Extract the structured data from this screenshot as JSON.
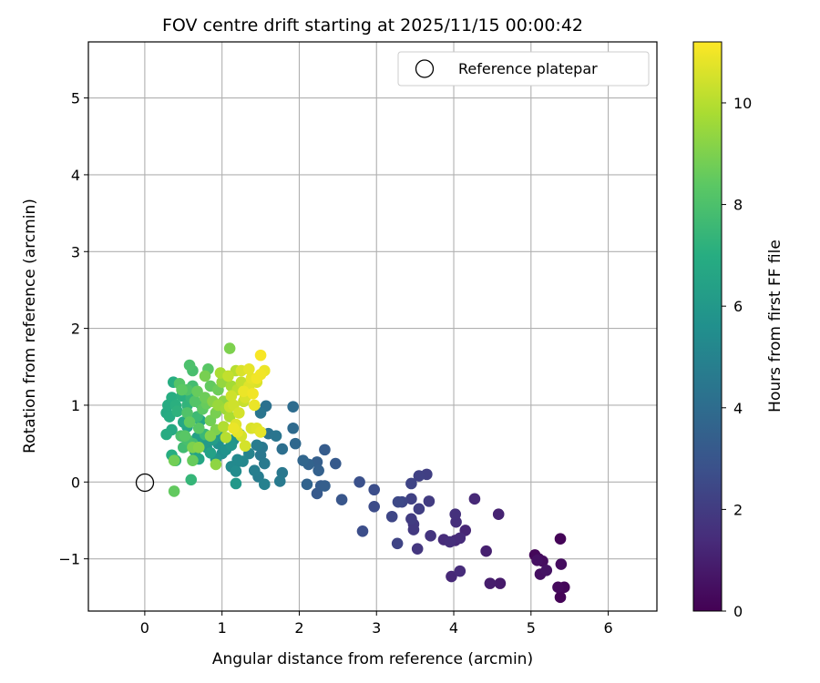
{
  "chart_data": {
    "type": "scatter",
    "title": "FOV centre drift starting at 2025/11/15 00:00:42",
    "xlabel": "Angular distance from reference (arcmin)",
    "ylabel": "Rotation from reference (arcmin)",
    "xlim": [
      -0.73,
      6.63
    ],
    "ylim": [
      -1.68,
      5.73
    ],
    "xticks": [
      "0",
      "1",
      "2",
      "3",
      "4",
      "5",
      "6"
    ],
    "yticks": [
      "−1",
      "0",
      "1",
      "2",
      "3",
      "4",
      "5"
    ],
    "grid": true,
    "legend": {
      "position": "top-right",
      "entries": [
        "Reference platepar"
      ]
    },
    "reference_point": {
      "x": 0,
      "y": 0,
      "marker": "open-circle"
    },
    "colorbar": {
      "label": "Hours from first FF file",
      "range": [
        0,
        11.2
      ],
      "ticks": [
        "0",
        "2",
        "4",
        "6",
        "8",
        "10"
      ],
      "colormap": "viridis"
    },
    "series": [
      {
        "points": [
          [
            5.38,
            -0.74,
            0.1
          ],
          [
            5.05,
            -0.95,
            0.2
          ],
          [
            5.1,
            -1.0,
            0.3
          ],
          [
            5.15,
            -1.03,
            0.4
          ],
          [
            5.08,
            -1.02,
            0.5
          ],
          [
            5.2,
            -1.15,
            0.6
          ],
          [
            5.12,
            -1.2,
            0.5
          ],
          [
            5.39,
            -1.07,
            0.4
          ],
          [
            5.35,
            -1.37,
            0.3
          ],
          [
            5.43,
            -1.37,
            0.2
          ],
          [
            5.38,
            -1.5,
            0.1
          ],
          [
            4.6,
            -1.32,
            0.8
          ],
          [
            4.47,
            -1.32,
            0.9
          ],
          [
            4.42,
            -0.9,
            1.0
          ],
          [
            4.58,
            -0.42,
            1.1
          ],
          [
            4.27,
            -0.22,
            1.3
          ],
          [
            4.15,
            -0.63,
            1.2
          ],
          [
            4.08,
            -0.73,
            1.4
          ],
          [
            4.02,
            -0.76,
            1.3
          ],
          [
            3.95,
            -0.78,
            1.5
          ],
          [
            3.87,
            -0.75,
            1.4
          ],
          [
            4.02,
            -0.42,
            1.6
          ],
          [
            4.03,
            -0.52,
            1.5
          ],
          [
            4.08,
            -1.16,
            1.4
          ],
          [
            3.97,
            -1.23,
            1.3
          ],
          [
            3.7,
            -0.7,
            1.7
          ],
          [
            3.53,
            -0.87,
            1.8
          ],
          [
            3.48,
            -0.55,
            1.9
          ],
          [
            3.45,
            -0.48,
            2.0
          ],
          [
            3.48,
            -0.62,
            1.9
          ],
          [
            3.55,
            -0.35,
            2.1
          ],
          [
            3.68,
            -0.25,
            2.0
          ],
          [
            3.55,
            0.08,
            2.2
          ],
          [
            3.65,
            0.1,
            2.1
          ],
          [
            3.45,
            -0.02,
            2.3
          ],
          [
            3.45,
            -0.22,
            2.2
          ],
          [
            3.33,
            -0.26,
            2.4
          ],
          [
            3.28,
            -0.26,
            2.5
          ],
          [
            3.2,
            -0.45,
            2.4
          ],
          [
            3.27,
            -0.8,
            2.3
          ],
          [
            2.97,
            -0.32,
            2.6
          ],
          [
            2.97,
            -0.1,
            2.7
          ],
          [
            2.78,
            0.0,
            2.8
          ],
          [
            2.82,
            -0.64,
            2.7
          ],
          [
            2.55,
            -0.23,
            3.0
          ],
          [
            2.47,
            0.24,
            3.2
          ],
          [
            2.33,
            0.42,
            3.3
          ],
          [
            2.33,
            -0.05,
            3.4
          ],
          [
            2.25,
            0.15,
            3.5
          ],
          [
            2.23,
            0.26,
            3.4
          ],
          [
            2.28,
            -0.05,
            3.3
          ],
          [
            2.23,
            -0.15,
            3.2
          ],
          [
            2.1,
            -0.03,
            3.6
          ],
          [
            2.05,
            0.28,
            3.7
          ],
          [
            2.12,
            0.23,
            3.6
          ],
          [
            1.95,
            0.5,
            3.8
          ],
          [
            1.92,
            0.7,
            3.9
          ],
          [
            1.92,
            0.98,
            4.0
          ],
          [
            1.78,
            0.43,
            4.1
          ],
          [
            1.57,
            0.99,
            4.2
          ],
          [
            1.5,
            0.9,
            4.4
          ],
          [
            1.6,
            0.63,
            4.3
          ],
          [
            1.52,
            0.45,
            4.5
          ],
          [
            1.55,
            0.24,
            4.6
          ],
          [
            1.5,
            0.35,
            4.5
          ],
          [
            1.45,
            0.48,
            4.7
          ],
          [
            1.42,
            0.15,
            4.8
          ],
          [
            1.47,
            0.07,
            4.7
          ],
          [
            1.55,
            -0.03,
            4.9
          ],
          [
            1.75,
            0.01,
            4.6
          ],
          [
            1.78,
            0.12,
            4.5
          ],
          [
            1.7,
            0.6,
            4.4
          ],
          [
            1.35,
            0.37,
            5.0
          ],
          [
            1.22,
            0.27,
            5.1
          ],
          [
            1.27,
            0.27,
            5.2
          ],
          [
            1.12,
            0.2,
            5.3
          ],
          [
            1.18,
            0.14,
            5.4
          ],
          [
            1.2,
            0.29,
            5.3
          ],
          [
            1.0,
            0.37,
            5.5
          ],
          [
            0.95,
            0.5,
            5.6
          ],
          [
            1.05,
            0.42,
            5.7
          ],
          [
            0.92,
            0.3,
            5.8
          ],
          [
            1.15,
            0.55,
            5.6
          ],
          [
            1.23,
            0.62,
            5.7
          ],
          [
            1.12,
            0.48,
            5.9
          ],
          [
            0.8,
            0.45,
            6.0
          ],
          [
            0.78,
            0.52,
            6.1
          ],
          [
            0.88,
            0.55,
            6.2
          ],
          [
            0.97,
            0.6,
            6.0
          ],
          [
            0.73,
            0.6,
            6.3
          ],
          [
            0.85,
            0.38,
            6.4
          ],
          [
            0.65,
            0.4,
            6.5
          ],
          [
            0.68,
            0.58,
            6.3
          ],
          [
            0.7,
            0.3,
            6.6
          ],
          [
            1.18,
            -0.02,
            6.0
          ],
          [
            0.72,
            0.8,
            6.5
          ],
          [
            0.55,
            0.72,
            6.6
          ],
          [
            0.5,
            0.78,
            6.7
          ],
          [
            0.35,
            0.68,
            6.8
          ],
          [
            0.32,
            0.85,
            6.9
          ],
          [
            0.28,
            0.9,
            6.8
          ],
          [
            0.3,
            1.0,
            6.9
          ],
          [
            0.35,
            1.1,
            7.0
          ],
          [
            0.4,
            1.0,
            7.1
          ],
          [
            0.37,
            1.3,
            7.0
          ],
          [
            0.42,
            0.92,
            7.2
          ],
          [
            0.48,
            1.12,
            7.1
          ],
          [
            0.55,
            1.0,
            7.3
          ],
          [
            0.6,
            1.1,
            7.4
          ],
          [
            0.35,
            0.35,
            7.0
          ],
          [
            0.28,
            0.62,
            6.9
          ],
          [
            0.4,
            0.28,
            7.2
          ],
          [
            0.6,
            0.03,
            7.4
          ],
          [
            0.78,
            0.62,
            7.5
          ],
          [
            0.68,
            0.85,
            7.6
          ],
          [
            0.5,
            0.45,
            7.7
          ],
          [
            0.62,
            0.5,
            7.8
          ],
          [
            0.55,
            0.55,
            7.9
          ],
          [
            0.47,
            0.6,
            8.0
          ],
          [
            0.72,
            1.02,
            7.6
          ],
          [
            0.62,
            1.25,
            7.8
          ],
          [
            0.58,
            1.52,
            8.0
          ],
          [
            0.62,
            1.45,
            7.9
          ],
          [
            0.55,
            1.2,
            8.1
          ],
          [
            0.65,
            1.05,
            8.2
          ],
          [
            0.7,
            0.7,
            8.3
          ],
          [
            0.55,
            0.9,
            8.1
          ],
          [
            0.48,
            1.2,
            8.4
          ],
          [
            0.45,
            1.28,
            8.2
          ],
          [
            0.52,
            0.6,
            8.3
          ],
          [
            0.58,
            0.78,
            8.5
          ],
          [
            0.68,
            1.18,
            8.6
          ],
          [
            0.75,
            0.95,
            8.4
          ],
          [
            0.8,
            1.02,
            8.6
          ],
          [
            0.82,
            1.47,
            8.3
          ],
          [
            0.85,
            1.25,
            8.5
          ],
          [
            0.78,
            1.1,
            8.7
          ],
          [
            0.85,
            0.8,
            8.8
          ],
          [
            0.92,
            0.9,
            8.9
          ],
          [
            0.95,
            1.2,
            8.7
          ],
          [
            0.38,
            0.28,
            8.8
          ],
          [
            0.38,
            -0.12,
            8.5
          ],
          [
            0.62,
            0.45,
            9.0
          ],
          [
            0.7,
            0.45,
            9.2
          ],
          [
            0.92,
            0.23,
            9.3
          ],
          [
            0.62,
            0.28,
            8.6
          ],
          [
            0.85,
            0.6,
            9.1
          ],
          [
            0.92,
            0.68,
            9.0
          ],
          [
            0.78,
            1.38,
            8.9
          ],
          [
            0.88,
            1.05,
            9.2
          ],
          [
            1.02,
            1.05,
            9.3
          ],
          [
            1.1,
            1.74,
            9.0
          ],
          [
            1.0,
            1.3,
            9.4
          ],
          [
            0.95,
            1.0,
            9.5
          ],
          [
            1.05,
            0.95,
            9.6
          ],
          [
            1.12,
            1.25,
            9.7
          ],
          [
            1.1,
            0.85,
            9.8
          ],
          [
            1.02,
            0.72,
            9.9
          ],
          [
            1.05,
            0.58,
            10.0
          ],
          [
            0.98,
            1.42,
            9.8
          ],
          [
            1.18,
            1.45,
            10.0
          ],
          [
            1.2,
            1.2,
            10.1
          ],
          [
            1.25,
            1.3,
            10.2
          ],
          [
            1.28,
            1.05,
            10.3
          ],
          [
            1.15,
            1.0,
            10.4
          ],
          [
            1.22,
            0.9,
            10.5
          ],
          [
            1.3,
            1.1,
            10.6
          ],
          [
            1.35,
            1.25,
            10.7
          ],
          [
            1.38,
            1.35,
            10.8
          ],
          [
            1.42,
            1.0,
            10.9
          ],
          [
            1.45,
            1.35,
            11.0
          ],
          [
            1.5,
            1.4,
            11.0
          ],
          [
            1.55,
            1.45,
            10.9
          ],
          [
            1.5,
            1.65,
            11.1
          ],
          [
            1.35,
            1.47,
            10.8
          ],
          [
            1.25,
            1.45,
            10.6
          ],
          [
            1.18,
            0.75,
            10.7
          ],
          [
            1.2,
            0.65,
            10.8
          ],
          [
            1.15,
            0.7,
            10.9
          ],
          [
            1.3,
            0.47,
            10.5
          ],
          [
            1.38,
            0.7,
            10.6
          ],
          [
            1.45,
            0.7,
            10.7
          ],
          [
            1.5,
            0.65,
            10.8
          ],
          [
            1.25,
            0.6,
            10.5
          ],
          [
            1.08,
            1.38,
            10.2
          ],
          [
            1.12,
            1.12,
            10.4
          ],
          [
            1.28,
            1.18,
            10.9
          ],
          [
            1.4,
            1.15,
            11.0
          ],
          [
            1.1,
            0.98,
            10.3
          ],
          [
            1.45,
            1.3,
            10.6
          ]
        ]
      }
    ]
  }
}
